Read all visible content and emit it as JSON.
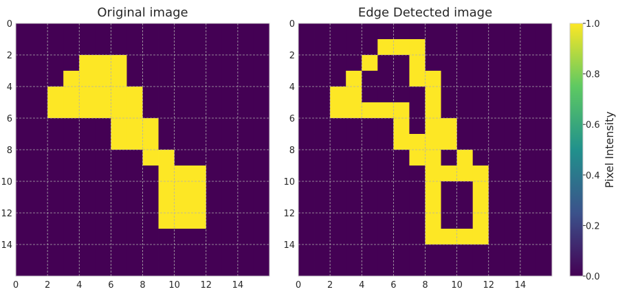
{
  "colormap": [
    "#440154",
    "#3b528b",
    "#21918c",
    "#5ec962",
    "#fde725"
  ],
  "cell_off_color": "#440154",
  "cell_on_color": "#fde725",
  "grid_color": "#b0b0b0",
  "chart_data": [
    {
      "type": "heatmap",
      "title": "Original image",
      "xlim": [
        0,
        16
      ],
      "ylim": [
        16,
        0
      ],
      "x_ticks": [
        "0",
        "2",
        "4",
        "6",
        "8",
        "10",
        "12",
        "14"
      ],
      "y_ticks": [
        "0",
        "2",
        "4",
        "6",
        "8",
        "10",
        "12",
        "14"
      ],
      "grid": true,
      "value_range": [
        0,
        1
      ],
      "matrix": [
        "0000000000000000",
        "0000000000000000",
        "0000111000000000",
        "0001111000000000",
        "0011111100000000",
        "0011111100000000",
        "0000001110000000",
        "0000001110000000",
        "0000000011000000",
        "0000000001110000",
        "0000000001110000",
        "0000000001110000",
        "0000000001110000",
        "0000000000000000",
        "0000000000000000",
        "0000000000000000"
      ]
    },
    {
      "type": "heatmap",
      "title": "Edge Detected image",
      "xlim": [
        0,
        16
      ],
      "ylim": [
        16,
        0
      ],
      "x_ticks": [
        "0",
        "2",
        "4",
        "6",
        "8",
        "10",
        "12",
        "14"
      ],
      "y_ticks": [
        "0",
        "2",
        "4",
        "6",
        "8",
        "10",
        "12",
        "14"
      ],
      "grid": true,
      "value_range": [
        0,
        1
      ],
      "matrix": [
        "0000000000000000",
        "0000011100000000",
        "0000100100000000",
        "0001000110000000",
        "0011000010000000",
        "0011111010000000",
        "0000001011000000",
        "0000001111000000",
        "0000000110100000",
        "0000000011110000",
        "0000000010010000",
        "0000000010010000",
        "0000000010010000",
        "0000000011110000",
        "0000000000000000",
        "0000000000000000"
      ]
    }
  ],
  "colorbar": {
    "label": "Pixel Intensity",
    "range": [
      0,
      1
    ],
    "ticks": [
      "0.0",
      "0.2",
      "0.4",
      "0.6",
      "0.8",
      "1.0"
    ]
  }
}
